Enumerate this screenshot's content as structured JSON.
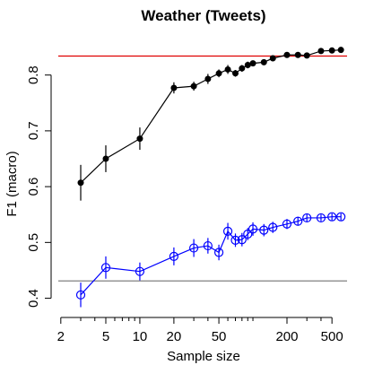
{
  "chart_data": {
    "type": "line",
    "title": "Weather (Tweets)",
    "xlabel": "Sample size",
    "ylabel": "F1 (macro)",
    "x_scale": "log",
    "xlim": [
      1.9,
      680
    ],
    "ylim": [
      0.38,
      0.875
    ],
    "x_ticks": [
      2,
      5,
      10,
      20,
      50,
      200,
      500
    ],
    "y_ticks": [
      0.4,
      0.5,
      0.6,
      0.7,
      0.8
    ],
    "grid": false,
    "reference_lines": [
      {
        "y": 0.834,
        "color": "#e00000"
      },
      {
        "y": 0.431,
        "color": "#808080"
      }
    ],
    "series": [
      {
        "color": "#000000",
        "marker": "filled-circle",
        "x": [
          3,
          5,
          10,
          20,
          30,
          40,
          50,
          60,
          70,
          80,
          90,
          100,
          125,
          150,
          200,
          250,
          300,
          400,
          500,
          600
        ],
        "y": [
          0.607,
          0.65,
          0.686,
          0.777,
          0.78,
          0.793,
          0.803,
          0.81,
          0.803,
          0.812,
          0.818,
          0.821,
          0.823,
          0.83,
          0.836,
          0.836,
          0.835,
          0.843,
          0.844,
          0.845
        ],
        "err": [
          0.032,
          0.024,
          0.02,
          0.01,
          0.008,
          0.009,
          0.007,
          0.008,
          0.006,
          0.006,
          0.006,
          0.005,
          0.005,
          0.005,
          0.004,
          0.004,
          0.004,
          0.004,
          0.004,
          0.004
        ]
      },
      {
        "color": "#0000ff",
        "marker": "open-circle",
        "x": [
          3,
          5,
          10,
          20,
          30,
          40,
          50,
          60,
          70,
          80,
          90,
          100,
          125,
          150,
          200,
          250,
          300,
          400,
          500,
          600
        ],
        "y": [
          0.406,
          0.455,
          0.448,
          0.475,
          0.49,
          0.494,
          0.482,
          0.52,
          0.504,
          0.505,
          0.515,
          0.524,
          0.522,
          0.527,
          0.533,
          0.538,
          0.544,
          0.544,
          0.546,
          0.546
        ],
        "err": [
          0.022,
          0.02,
          0.016,
          0.016,
          0.016,
          0.014,
          0.014,
          0.015,
          0.012,
          0.012,
          0.011,
          0.012,
          0.011,
          0.01,
          0.009,
          0.008,
          0.007,
          0.006,
          0.006,
          0.006
        ]
      }
    ]
  }
}
